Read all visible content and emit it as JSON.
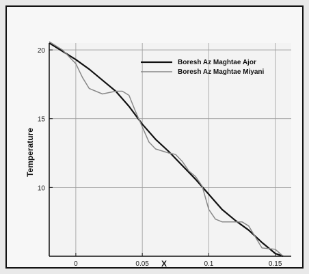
{
  "chart_data": {
    "type": "line",
    "xlabel": "X",
    "ylabel": "Temperature",
    "xlim": [
      -0.02,
      0.162
    ],
    "ylim": [
      5,
      20.5
    ],
    "x_ticks": [
      "0",
      "0.05",
      "0.1",
      "0.15"
    ],
    "y_ticks": [
      "10",
      "15",
      "20"
    ],
    "grid": true,
    "legend_position": "top-right",
    "series": [
      {
        "name": "Boresh Az Maghtae Ajor",
        "color": "#111111",
        "points": [
          [
            -0.02,
            20.5
          ],
          [
            -0.01,
            19.9
          ],
          [
            0.0,
            19.3
          ],
          [
            0.01,
            18.6
          ],
          [
            0.02,
            17.8
          ],
          [
            0.03,
            17.0
          ],
          [
            0.04,
            15.9
          ],
          [
            0.05,
            14.6
          ],
          [
            0.06,
            13.5
          ],
          [
            0.07,
            12.6
          ],
          [
            0.08,
            11.6
          ],
          [
            0.09,
            10.6
          ],
          [
            0.1,
            9.5
          ],
          [
            0.11,
            8.4
          ],
          [
            0.12,
            7.6
          ],
          [
            0.13,
            6.9
          ],
          [
            0.14,
            6.0
          ],
          [
            0.15,
            5.2
          ],
          [
            0.156,
            5.0
          ]
        ]
      },
      {
        "name": "Boresh Az Maghtae Miyani",
        "color": "#888888",
        "points": [
          [
            -0.02,
            20.6
          ],
          [
            -0.01,
            20.0
          ],
          [
            0.0,
            19.0
          ],
          [
            0.005,
            18.0
          ],
          [
            0.01,
            17.2
          ],
          [
            0.02,
            16.8
          ],
          [
            0.025,
            16.9
          ],
          [
            0.03,
            17.0
          ],
          [
            0.035,
            17.0
          ],
          [
            0.04,
            16.7
          ],
          [
            0.045,
            15.5
          ],
          [
            0.05,
            14.4
          ],
          [
            0.055,
            13.3
          ],
          [
            0.06,
            12.8
          ],
          [
            0.07,
            12.5
          ],
          [
            0.075,
            12.4
          ],
          [
            0.08,
            11.9
          ],
          [
            0.085,
            11.2
          ],
          [
            0.09,
            10.8
          ],
          [
            0.095,
            10.1
          ],
          [
            0.1,
            8.4
          ],
          [
            0.105,
            7.7
          ],
          [
            0.11,
            7.5
          ],
          [
            0.12,
            7.5
          ],
          [
            0.125,
            7.5
          ],
          [
            0.13,
            7.2
          ],
          [
            0.135,
            6.4
          ],
          [
            0.14,
            5.6
          ],
          [
            0.15,
            5.5
          ],
          [
            0.156,
            5.0
          ]
        ]
      }
    ]
  }
}
